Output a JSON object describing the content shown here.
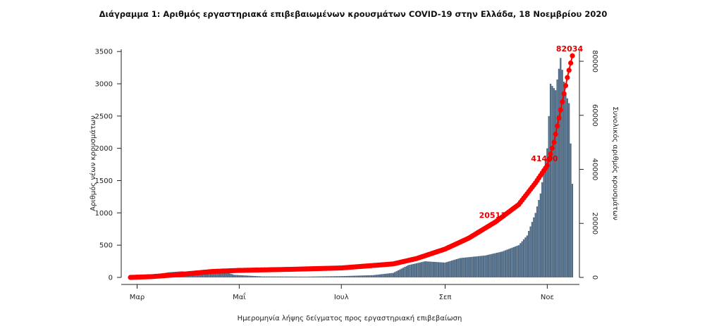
{
  "chart_data": {
    "type": "bar",
    "title": "Διάγραμμα 1: Αριθμός εργαστηριακά επιβεβαιωμένων κρουσμάτων COVID-19 στην Ελλάδα, 18 Νοεμβρίου 2020",
    "xlabel": "Ημερομηνία λήψης δείγματος προς εργαστηριακή επιβεβαίωση",
    "ylabel": "Αριθμός νέων κρουσμάτων",
    "y2label": "Συνολικός αριθμός κρουσμάτων",
    "ylim": [
      0,
      3600
    ],
    "y2lim": [
      0,
      86000
    ],
    "yticks": [
      0,
      500,
      1000,
      1500,
      2000,
      2500,
      3000,
      3500
    ],
    "y2ticks": [
      0,
      20000,
      40000,
      60000,
      80000
    ],
    "date_range": [
      "2020-02-26",
      "2020-11-16"
    ],
    "xticks": [
      {
        "date": "2020-03-01",
        "label": "Μαρ"
      },
      {
        "date": "2020-05-01",
        "label": "Μαΐ"
      },
      {
        "date": "2020-07-01",
        "label": "Ιουλ"
      },
      {
        "date": "2020-09-01",
        "label": "Σεπ"
      },
      {
        "date": "2020-11-01",
        "label": "Νοε"
      }
    ],
    "bar_color": "#4f6b85",
    "line_color": "#ff0000",
    "series": [
      {
        "name": "Αριθμός νέων κρουσμάτων",
        "kind": "bar",
        "anchors": [
          [
            "2020-02-26",
            3
          ],
          [
            "2020-03-08",
            30
          ],
          [
            "2020-03-20",
            80
          ],
          [
            "2020-03-28",
            95
          ],
          [
            "2020-04-10",
            50
          ],
          [
            "2020-04-18",
            130
          ],
          [
            "2020-04-28",
            40
          ],
          [
            "2020-05-15",
            15
          ],
          [
            "2020-06-10",
            12
          ],
          [
            "2020-07-01",
            20
          ],
          [
            "2020-07-20",
            35
          ],
          [
            "2020-08-01",
            70
          ],
          [
            "2020-08-10",
            190
          ],
          [
            "2020-08-20",
            250
          ],
          [
            "2020-09-01",
            230
          ],
          [
            "2020-09-10",
            300
          ],
          [
            "2020-09-25",
            340
          ],
          [
            "2020-10-05",
            400
          ],
          [
            "2020-10-15",
            500
          ],
          [
            "2020-10-20",
            650
          ],
          [
            "2020-10-25",
            1000
          ],
          [
            "2020-10-28",
            1300
          ],
          [
            "2020-11-01",
            2000
          ],
          [
            "2020-11-03",
            3000
          ],
          [
            "2020-11-06",
            2900
          ],
          [
            "2020-11-09",
            3400
          ],
          [
            "2020-11-12",
            2850
          ],
          [
            "2020-11-14",
            2700
          ],
          [
            "2020-11-16",
            1450
          ]
        ]
      },
      {
        "name": "Συνολικός αριθμός κρουσμάτων",
        "kind": "line",
        "anchors": [
          [
            "2020-02-26",
            0
          ],
          [
            "2020-03-10",
            300
          ],
          [
            "2020-03-25",
            1000
          ],
          [
            "2020-04-15",
            2200
          ],
          [
            "2020-05-01",
            2600
          ],
          [
            "2020-06-01",
            3000
          ],
          [
            "2020-07-01",
            3500
          ],
          [
            "2020-08-01",
            5000
          ],
          [
            "2020-08-15",
            7000
          ],
          [
            "2020-09-01",
            10500
          ],
          [
            "2020-09-15",
            14500
          ],
          [
            "2020-10-01",
            20511
          ],
          [
            "2020-10-15",
            27000
          ],
          [
            "2020-10-25",
            35000
          ],
          [
            "2020-11-01",
            41400
          ],
          [
            "2020-11-05",
            50000
          ],
          [
            "2020-11-10",
            65000
          ],
          [
            "2020-11-13",
            74000
          ],
          [
            "2020-11-16",
            82034
          ]
        ]
      }
    ],
    "annotations": [
      {
        "date": "2020-10-01",
        "value": 20511,
        "text": "20511"
      },
      {
        "date": "2020-11-01",
        "value": 41400,
        "text": "41400"
      },
      {
        "date": "2020-11-16",
        "value": 82034,
        "text": "82034"
      }
    ],
    "grid": false
  }
}
